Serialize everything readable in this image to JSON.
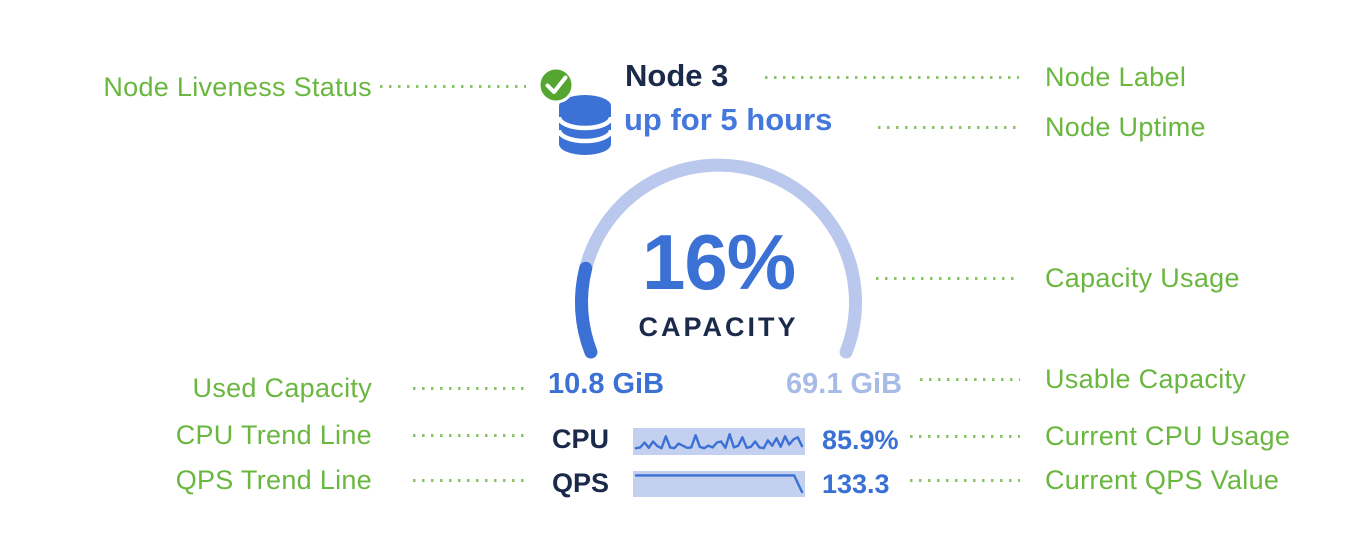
{
  "colors": {
    "accent_blue": "#3b70d4",
    "bright_blue": "#4478dd",
    "light_blue": "#b9c8ec",
    "pale_blue_text": "#a7bbe7",
    "navy": "#1b2a4a",
    "green_label": "#6ab73f",
    "green_dot": "#8cc46a",
    "check_green": "#55a631",
    "db_blue": "#3c72d6",
    "spark_bg": "#c3d0ef"
  },
  "node": {
    "label": "Node 3",
    "uptime": "up for 5 hours"
  },
  "gauge": {
    "percent_label": "16%",
    "caption": "CAPACITY",
    "used_capacity": "10.8 GiB",
    "usable_capacity": "69.1 GiB"
  },
  "metrics": {
    "cpu": {
      "label": "CPU",
      "value": "85.9%"
    },
    "qps": {
      "label": "QPS",
      "value": "133.3"
    }
  },
  "annotations": {
    "left": [
      {
        "label": "Node Liveness Status"
      },
      {
        "label": "Used Capacity"
      },
      {
        "label": "CPU Trend Line"
      },
      {
        "label": "QPS Trend Line"
      }
    ],
    "right": [
      {
        "label": "Node Label"
      },
      {
        "label": "Node Uptime"
      },
      {
        "label": "Capacity Usage"
      },
      {
        "label": "Usable Capacity"
      },
      {
        "label": "Current CPU Usage"
      },
      {
        "label": "Current QPS Value"
      }
    ]
  },
  "chart_data": [
    {
      "type": "gauge",
      "title": "CAPACITY",
      "value_percent": 16,
      "value_label": "16%",
      "used": "10.8 GiB",
      "usable": "69.1 GiB",
      "start_deg": 201.4,
      "sweep_deg": 222.8,
      "gap_position": "bottom"
    },
    {
      "type": "line",
      "name": "CPU usage sparkline",
      "current_label": "85.9%",
      "ylim": [
        0,
        1
      ],
      "values": [
        0.18,
        0.22,
        0.45,
        0.2,
        0.5,
        0.28,
        0.18,
        0.75,
        0.22,
        0.18,
        0.4,
        0.3,
        0.2,
        0.22,
        0.8,
        0.25,
        0.18,
        0.3,
        0.22,
        0.45,
        0.5,
        0.2,
        0.85,
        0.22,
        0.3,
        0.7,
        0.2,
        0.25,
        0.5,
        0.22,
        0.18,
        0.55,
        0.3,
        0.65,
        0.25,
        0.75,
        0.35,
        0.6,
        0.7,
        0.28
      ]
    },
    {
      "type": "line",
      "name": "QPS trend line",
      "current_label": "133.3",
      "ylim": [
        0,
        1
      ],
      "values": [
        0.93,
        0.93,
        0.93,
        0.93,
        0.93,
        0.93,
        0.93,
        0.93,
        0.93,
        0.93,
        0.93,
        0.93,
        0.93,
        0.93,
        0.93,
        0.93,
        0.93,
        0.93,
        0.93,
        0.93,
        0.93,
        0.1
      ]
    }
  ]
}
